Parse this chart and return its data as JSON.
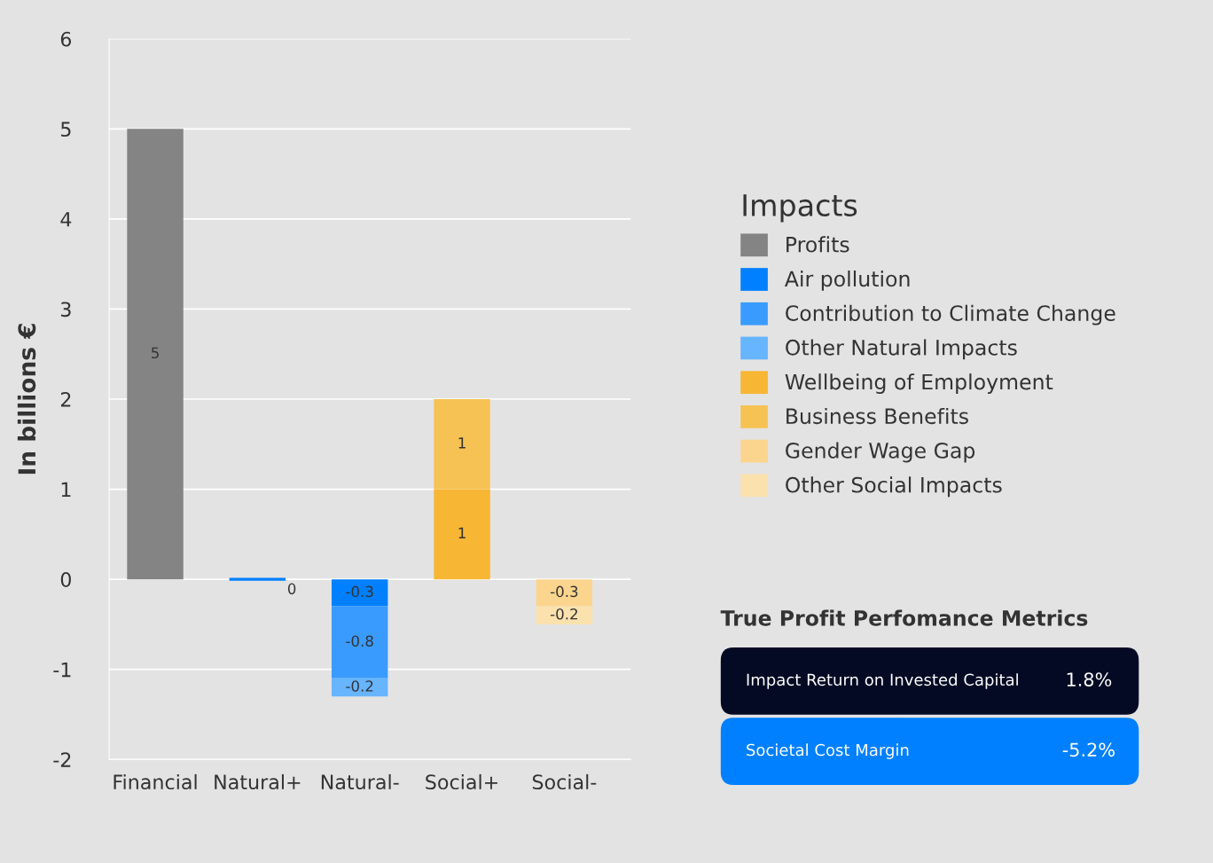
{
  "chart_data": [
    {
      "type": "bar",
      "stacked": true,
      "ylabel": "In billions €",
      "legend_title": "Impacts",
      "legend": "right",
      "grid": "y",
      "data_labels": true,
      "categories": [
        "Financial",
        "Natural+",
        "Natural-",
        "Social+",
        "Social-"
      ],
      "ylim": [
        -2,
        6
      ],
      "yticks": [
        -2,
        -1,
        0,
        1,
        2,
        3,
        4,
        5,
        6
      ],
      "series": [
        {
          "name": "Profits",
          "color": "#848484",
          "values": [
            5,
            null,
            null,
            null,
            null
          ]
        },
        {
          "name": "Air pollution",
          "color": "#0080ff",
          "values": [
            null,
            0,
            -0.3,
            null,
            null
          ]
        },
        {
          "name": "Contribution to Climate Change",
          "color": "#3a9bff",
          "values": [
            null,
            null,
            -0.8,
            null,
            null
          ]
        },
        {
          "name": "Other Natural Impacts",
          "color": "#67b4ff",
          "values": [
            null,
            null,
            -0.2,
            null,
            null
          ]
        },
        {
          "name": "Wellbeing of Employment",
          "color": "#f7b634",
          "values": [
            null,
            null,
            null,
            1,
            null
          ]
        },
        {
          "name": "Business Benefits",
          "color": "#f6c254",
          "values": [
            null,
            null,
            null,
            1,
            null
          ]
        },
        {
          "name": "Gender Wage Gap",
          "color": "#fbd48e",
          "values": [
            null,
            null,
            null,
            null,
            -0.3
          ]
        },
        {
          "name": "Other Social Impacts",
          "color": "#fbe1ae",
          "values": [
            null,
            null,
            null,
            null,
            -0.2
          ]
        }
      ]
    },
    {
      "type": "other",
      "title": "True Profit Perfomance Metrics",
      "annotations": [
        "Impact Return on Invested Capital",
        "1.8%",
        "Societal Cost Margin",
        "-5.2%"
      ]
    }
  ]
}
